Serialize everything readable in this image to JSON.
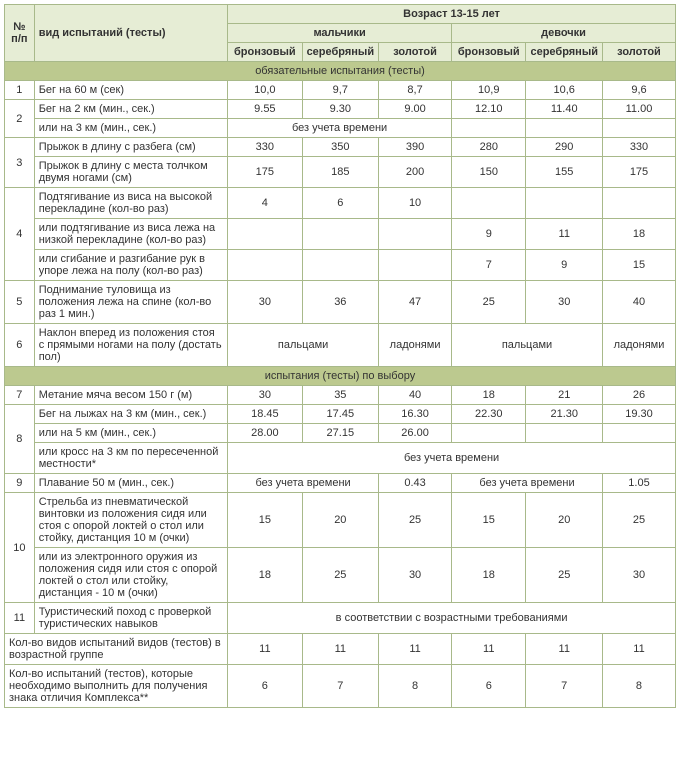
{
  "header": {
    "num": "№ п/п",
    "test": "вид испытаний (тесты)",
    "age": "Возраст 13-15 лет",
    "boys": "мальчики",
    "girls": "девочки",
    "bronze": "бронзовый",
    "silver": "серебряный",
    "gold": "золотой"
  },
  "sections": {
    "mandatory": "обязательные испытания (тесты)",
    "optional": "испытания (тесты) по выбору"
  },
  "rows": {
    "r1": {
      "n": "1",
      "t": "Бег на 60 м (сек)",
      "b": [
        "10,0",
        "9,7",
        "8,7"
      ],
      "g": [
        "10,9",
        "10,6",
        "9,6"
      ]
    },
    "r2a": {
      "n": "2",
      "t": "Бег на 2 км (мин., сек.)",
      "b": [
        "9.55",
        "9.30",
        "9.00"
      ],
      "g": [
        "12.10",
        "11.40",
        "11.00"
      ]
    },
    "r2b": {
      "t": "или на 3 км (мин., сек.)",
      "m": "без учета времени"
    },
    "r3a": {
      "n": "3",
      "t": "Прыжок в длину с разбега (см)",
      "b": [
        "330",
        "350",
        "390"
      ],
      "g": [
        "280",
        "290",
        "330"
      ]
    },
    "r3b": {
      "t": "Прыжок в длину с места толчком двумя ногами (см)",
      "b": [
        "175",
        "185",
        "200"
      ],
      "g": [
        "150",
        "155",
        "175"
      ]
    },
    "r4a": {
      "n": "4",
      "t": "Подтягивание из виса на высокой перекладине (кол-во раз)",
      "b": [
        "4",
        "6",
        "10"
      ],
      "g": [
        "",
        "",
        ""
      ]
    },
    "r4b": {
      "t": "или подтягивание из виса лежа на низкой перекладине (кол-во раз)",
      "b": [
        "",
        "",
        ""
      ],
      "g": [
        "9",
        "11",
        "18"
      ]
    },
    "r4c": {
      "t": "или сгибание и разгибание рук в упоре лежа на полу (кол-во раз)",
      "b": [
        "",
        "",
        ""
      ],
      "g": [
        "7",
        "9",
        "15"
      ]
    },
    "r5": {
      "n": "5",
      "t": "Поднимание туловища из положения лежа на спине (кол-во раз 1 мин.)",
      "b": [
        "30",
        "36",
        "47"
      ],
      "g": [
        "25",
        "30",
        "40"
      ]
    },
    "r6": {
      "n": "6",
      "t": "Наклон вперед из положения стоя с прямыми ногами на полу (достать пол)",
      "bm": "пальцами",
      "bg_gold": "ладонями",
      "gm": "пальцами",
      "gg_gold": "ладонями"
    },
    "r7": {
      "n": "7",
      "t": "Метание мяча весом 150 г (м)",
      "b": [
        "30",
        "35",
        "40"
      ],
      "g": [
        "18",
        "21",
        "26"
      ]
    },
    "r8a": {
      "n": "8",
      "t": "Бег на лыжах на 3 км (мин., сек.)",
      "b": [
        "18.45",
        "17.45",
        "16.30"
      ],
      "g": [
        "22.30",
        "21.30",
        "19.30"
      ]
    },
    "r8b": {
      "t": "или на 5 км (мин., сек.)",
      "b": [
        "28.00",
        "27.15",
        "26.00"
      ],
      "g": [
        "",
        "",
        ""
      ]
    },
    "r8c": {
      "t": "или кросс на 3 км по пересеченной местности*",
      "m": "без учета времени"
    },
    "r9": {
      "n": "9",
      "t": "Плавание 50 м (мин., сек.)",
      "bm": "без учета времени",
      "bg_gold": "0.43",
      "gm": "без учета времени",
      "gg_gold": "1.05"
    },
    "r10a": {
      "n": "10",
      "t": "Стрельба из пневматической винтовки из положения сидя или стоя с опорой локтей о стол или стойку, дистанция 10 м (очки)",
      "b": [
        "15",
        "20",
        "25"
      ],
      "g": [
        "15",
        "20",
        "25"
      ]
    },
    "r10b": {
      "t": "или из электронного оружия из положения сидя или стоя с опорой локтей о стол или стойку, дистанция - 10 м (очки)",
      "b": [
        "18",
        "25",
        "30"
      ],
      "g": [
        "18",
        "25",
        "30"
      ]
    },
    "r11": {
      "n": "11",
      "t": "Туристический поход с проверкой туристических навыков",
      "m": "в соответствии с возрастными требованиями"
    },
    "s1": {
      "t": "Кол-во видов испытаний видов (тестов) в возрастной группе",
      "b": [
        "11",
        "11",
        "11"
      ],
      "g": [
        "11",
        "11",
        "11"
      ]
    },
    "s2": {
      "t": "Кол-во испытаний (тестов), которые необходимо выполнить для получения знака отличия Комплекса**",
      "b": [
        "6",
        "7",
        "8"
      ],
      "g": [
        "6",
        "7",
        "8"
      ]
    }
  }
}
